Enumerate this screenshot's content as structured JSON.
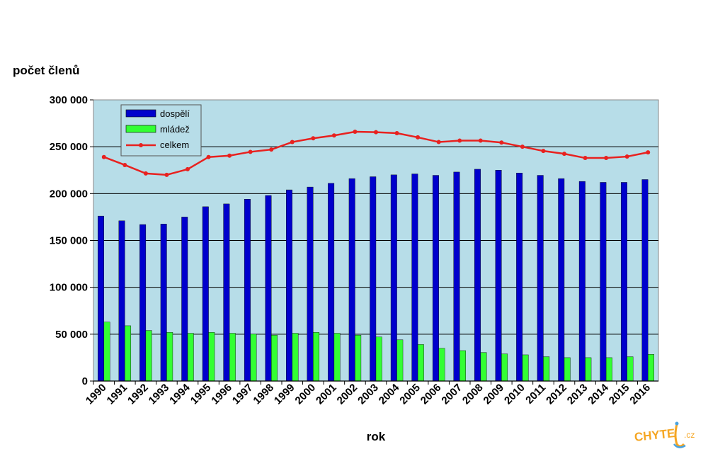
{
  "chart_data": {
    "type": "bar",
    "ylabel": "počet členů",
    "xlabel": "rok",
    "ylim": [
      0,
      300000
    ],
    "yticks": [
      0,
      50000,
      100000,
      150000,
      200000,
      250000,
      300000
    ],
    "ytick_labels": [
      "0",
      "50 000",
      "100 000",
      "150 000",
      "200 000",
      "250 000",
      "300 000"
    ],
    "grid": "horizontal",
    "legend_position": "top-left",
    "plot_background": "#B7DDE8",
    "categories": [
      "1990",
      "1991",
      "1992",
      "1993",
      "1994",
      "1995",
      "1996",
      "1997",
      "1998",
      "1999",
      "2000",
      "2001",
      "2002",
      "2003",
      "2004",
      "2005",
      "2006",
      "2007",
      "2008",
      "2009",
      "2010",
      "2011",
      "2012",
      "2013",
      "2014",
      "2015",
      "2016"
    ],
    "series": [
      {
        "name": "dospělí",
        "type": "bar",
        "color": "#0000CC",
        "values": [
          176000,
          171000,
          167000,
          167500,
          175000,
          186000,
          189000,
          194000,
          198000,
          204000,
          207000,
          211000,
          216000,
          218000,
          220000,
          221000,
          219500,
          223000,
          226000,
          225000,
          222000,
          219500,
          216000,
          213000,
          212000,
          212000,
          215000
        ]
      },
      {
        "name": "mládež",
        "type": "bar",
        "color": "#33FF33",
        "values": [
          63000,
          59000,
          54000,
          52000,
          51000,
          52000,
          51000,
          50000,
          49000,
          51000,
          52000,
          51000,
          49000,
          47000,
          44000,
          39000,
          35000,
          32500,
          30500,
          29000,
          28000,
          26000,
          25000,
          25000,
          25000,
          26000,
          28500
        ]
      },
      {
        "name": "celkem",
        "type": "line",
        "color": "#E8211F",
        "values": [
          239000,
          230500,
          221500,
          220000,
          226000,
          239000,
          240500,
          244500,
          247000,
          255000,
          259000,
          262000,
          266000,
          265500,
          264500,
          260000,
          255000,
          256500,
          256500,
          254500,
          250000,
          245500,
          242500,
          238000,
          238000,
          239500,
          244000
        ]
      }
    ]
  },
  "watermark": {
    "text": "CHYTEJ.cz",
    "color": "#F5A623"
  }
}
